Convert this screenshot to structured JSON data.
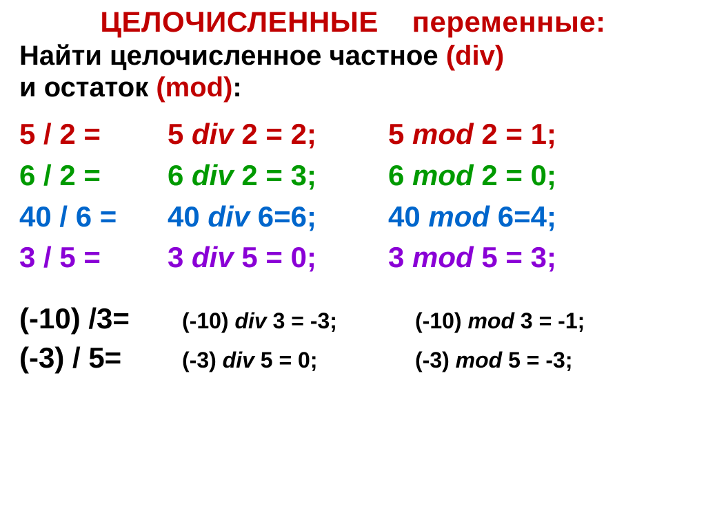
{
  "colors": {
    "red": "#c00000",
    "green": "#009a00",
    "blue": "#0066cc",
    "purple": "#8a00d6",
    "black": "#000000"
  },
  "title": {
    "word1": "ЦЕЛОЧИСЛЕННЫЕ",
    "word2": "переменные:"
  },
  "subtitle": {
    "line1_pre": "Найти целочисленное частное ",
    "div_paren": "(div)",
    "line2_pre": "и остаток ",
    "mod_paren": "(mod)",
    "colon": ":"
  },
  "rows": [
    {
      "color": "red",
      "frac": "5 / 2 =",
      "div_a": "5 ",
      "div_op": "div",
      "div_b": " 2 = 2;",
      "mod_a": "5 ",
      "mod_op": "mod",
      "mod_b": " 2 = 1;"
    },
    {
      "color": "green",
      "frac": "6 / 2 =",
      "div_a": "6 ",
      "div_op": "div",
      "div_b": " 2 = 3;",
      "mod_a": "6 ",
      "mod_op": "mod",
      "mod_b": " 2 = 0;"
    },
    {
      "color": "blue",
      "frac": "40 / 6 =",
      "div_a": "40 ",
      "div_op": "div",
      "div_b": " 6=6;",
      "mod_a": "40 ",
      "mod_op": "mod",
      "mod_b": " 6=4;"
    },
    {
      "color": "purple",
      "frac": "3 / 5 =",
      "div_a": "3 ",
      "div_op": "div",
      "div_b": " 5 = 0;",
      "mod_a": "3 ",
      "mod_op": "mod",
      "mod_b": " 5 = 3;"
    }
  ],
  "neg": [
    {
      "left": "(-10) /3=",
      "mid_a": "(-10) ",
      "mid_op": "div",
      "mid_b": " 3 = -3;",
      "right_a": "(-10) ",
      "right_op": "mod",
      "right_b": " 3 = -1;"
    },
    {
      "left": "(-3) / 5=",
      "mid_a": "(-3) ",
      "mid_op": "div",
      "mid_b": " 5 = 0;",
      "right_a": "(-3) ",
      "right_op": "mod",
      "right_b": " 5 = -3;"
    }
  ]
}
